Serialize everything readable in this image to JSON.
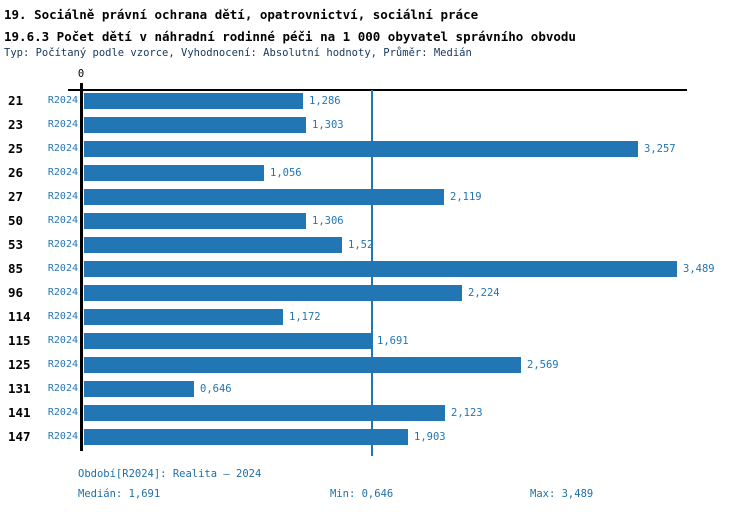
{
  "header": {
    "title_line1": "19. Sociálně právní ochrana dětí, opatrovnictví, sociální práce",
    "title_line2": "19.6.3 Počet dětí v náhradní rodinné péči na 1 000 obyvatel správního obvodu",
    "meta": "Typ: Počítaný podle vzorce, Vyhodnocení: Absolutní hodnoty, Průměr: Medián"
  },
  "chart_data": {
    "type": "bar",
    "orientation": "horizontal",
    "title": "19.6.3 Počet dětí v náhradní rodinné péči na 1 000 obyvatel správního obvodu",
    "categories": [
      "21",
      "23",
      "25",
      "26",
      "27",
      "50",
      "53",
      "85",
      "96",
      "114",
      "115",
      "125",
      "131",
      "141",
      "147"
    ],
    "series_label": "R2024",
    "values": [
      1.286,
      1.303,
      3.257,
      1.056,
      2.119,
      1.306,
      1.52,
      3.489,
      2.224,
      1.172,
      1.691,
      2.569,
      0.646,
      2.123,
      1.903
    ],
    "value_labels": [
      "1,286",
      "1,303",
      "3,257",
      "1,056",
      "2,119",
      "1,306",
      "1,52",
      "3,489",
      "2,224",
      "1,172",
      "1,691",
      "2,569",
      "0,646",
      "2,123",
      "1,903"
    ],
    "axis_zero_label": "0",
    "median_value": 1.691,
    "xlim": [
      0,
      3.6
    ],
    "grid": false,
    "legend_position": "bottom",
    "bar_color": "#2376B4",
    "median_line_color": "#2376B4"
  },
  "footer": {
    "period_label": "Období[R2024]: Realita – 2024",
    "median_label": "Medián: 1,691",
    "min_label": "Min: 0,646",
    "max_label": "Max: 3,489"
  }
}
